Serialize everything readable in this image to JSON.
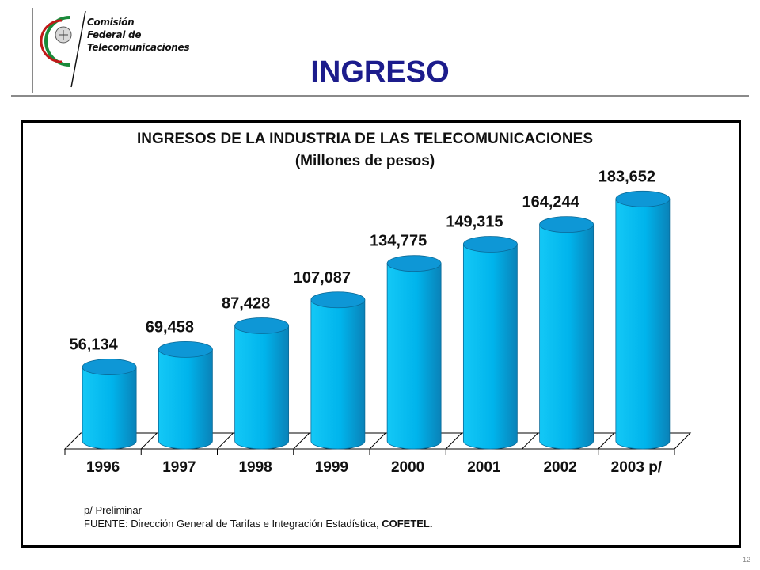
{
  "header": {
    "logo_lines": [
      "Comisión",
      "Federal de",
      "Telecomunicaciones"
    ],
    "page_title": "INGRESO"
  },
  "chart_data": {
    "type": "bar",
    "title": "INGRESOS DE LA INDUSTRIA DE LAS TELECOMUNICACIONES",
    "subtitle": "(Millones de pesos)",
    "categories": [
      "1996",
      "1997",
      "1998",
      "1999",
      "2000",
      "2001",
      "2002",
      "2003 p/"
    ],
    "values": [
      56134,
      69458,
      87428,
      107087,
      134775,
      149315,
      164244,
      183652
    ],
    "value_labels": [
      "56,134",
      "69,458",
      "87,428",
      "107,087",
      "134,775",
      "149,315",
      "164,244",
      "183,652"
    ],
    "xlabel": "",
    "ylabel": "",
    "ylim": [
      0,
      190000
    ],
    "grid": false,
    "colors": {
      "bar_front": "#00b4ec",
      "bar_top": "#0e97d6",
      "bar_side": "#0a82b8",
      "edge": "#0a6a98"
    }
  },
  "footer": {
    "note_preliminar": "p/ Preliminar",
    "source_prefix": "FUENTE: Dirección General de Tarifas e Integración Estadística, ",
    "source_org": "COFETEL."
  },
  "page_number": "12"
}
